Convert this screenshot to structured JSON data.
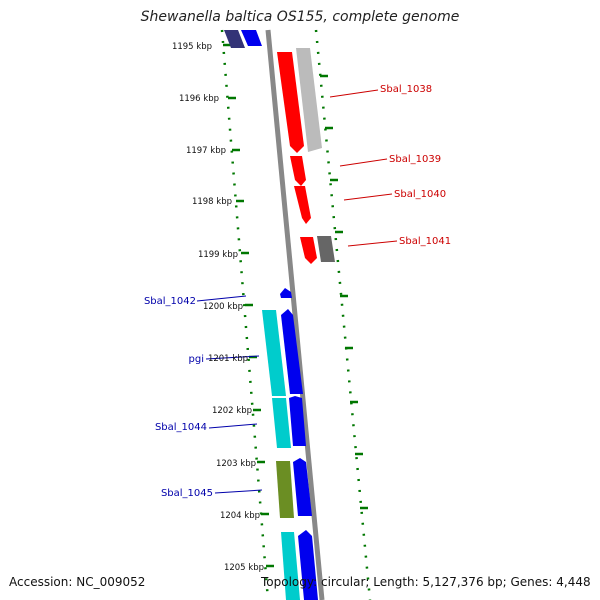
{
  "title": "Shewanella baltica OS155, complete genome",
  "footer": {
    "accession": "Accession: NC_009052",
    "summary": "Topology: circular; Length: 5,127,376 bp; Genes: 4,448"
  },
  "colors": {
    "tick": "#007700",
    "strand_line": "#888888",
    "red_label": "#cc0000",
    "blue_label": "#0000aa",
    "red_gene": "#ff0000",
    "grey_gene": "#bbbbbb",
    "dark_grey_gene": "#666666",
    "blue_gene": "#0000ee",
    "cyan_gene": "#00cccc",
    "olive_gene": "#6b8e23",
    "navy_gene": "#333377"
  },
  "scale_labels": [
    "1195 kbp",
    "1196 kbp",
    "1197 kbp",
    "1198 kbp",
    "1199 kbp",
    "1200 kbp",
    "1201 kbp",
    "1202 kbp",
    "1203 kbp",
    "1204 kbp",
    "1205 kbp"
  ],
  "gene_labels": {
    "right": [
      "Sbal_1038",
      "Sbal_1039",
      "Sbal_1040",
      "Sbal_1041"
    ],
    "left": [
      "Sbal_1042",
      "pgi",
      "Sbal_1044",
      "Sbal_1045"
    ]
  }
}
